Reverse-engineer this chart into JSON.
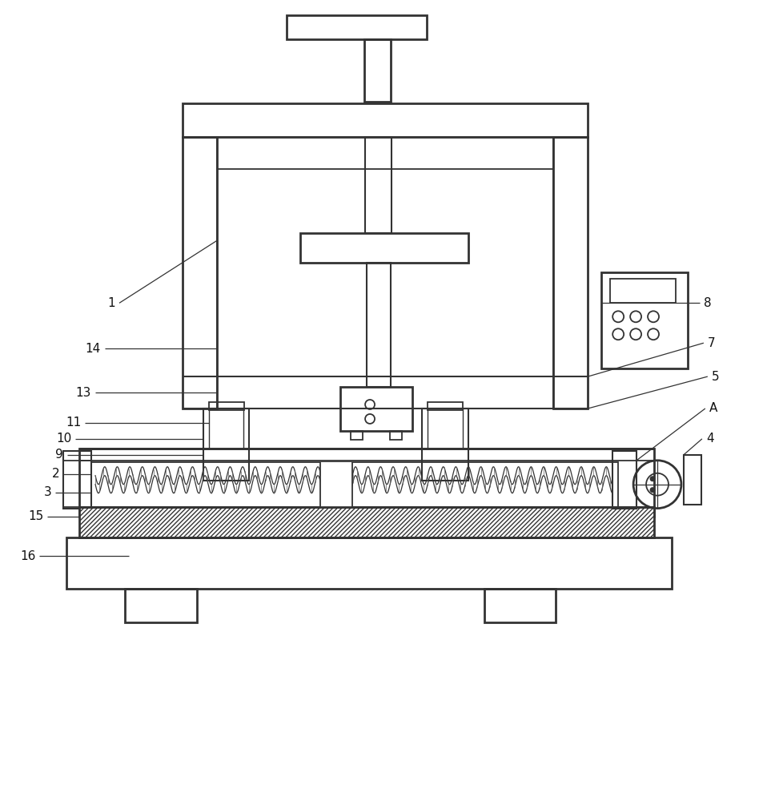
{
  "bg_color": "#ffffff",
  "lc": "#333333",
  "fig_w": 9.68,
  "fig_h": 10.0,
  "dpi": 100
}
